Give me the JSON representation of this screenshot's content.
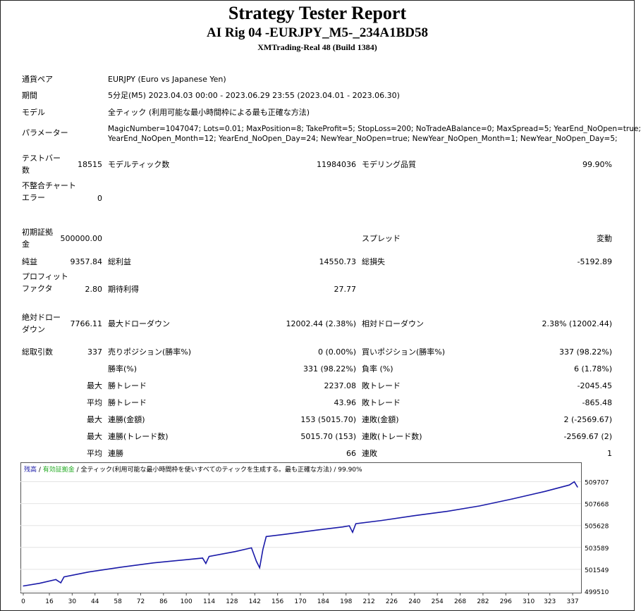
{
  "header": {
    "title": "Strategy Tester Report",
    "subtitle": "AI Rig 04 -EURJPY_M5-_234A1BD58",
    "server": "XMTrading-Real 48 (Build 1384)"
  },
  "info": {
    "pair_label": "通貨ペア",
    "pair_value": "EURJPY (Euro vs Japanese Yen)",
    "period_label": "期間",
    "period_value": "5分足(M5) 2023.04.03 00:00 - 2023.06.29 23:55 (2023.04.01 - 2023.06.30)",
    "model_label": "モデル",
    "model_value": "全ティック (利用可能な最小時間枠による最も正確な方法)",
    "params_label": "パラメーター",
    "params_line1": "MagicNumber=1047047; Lots=0.01; MaxPosition=8; TakeProfit=5; StopLoss=200; NoTradeABalance=0; MaxSpread=5; YearEnd_NoOpen=true;",
    "params_line2": "YearEnd_NoOpen_Month=12; YearEnd_NoOpen_Day=24; NewYear_NoOpen=true; NewYear_NoOpen_Month=1; NewYear_NoOpen_Day=5;"
  },
  "stats": {
    "bars_label": "テストバー数",
    "bars_value": "18515",
    "ticks_label": "モデルティック数",
    "ticks_value": "11984036",
    "quality_label": "モデリング品質",
    "quality_value": "99.90%",
    "mismatch_label": "不整合チャートエラー",
    "mismatch_value": "0",
    "deposit_label": "初期証拠金",
    "deposit_value": "500000.00",
    "spread_label": "スプレッド",
    "spread_value": "変動",
    "net_label": "純益",
    "net_value": "9357.84",
    "gross_profit_label": "総利益",
    "gross_profit_value": "14550.73",
    "gross_loss_label": "総損失",
    "gross_loss_value": "-5192.89",
    "pf_label": "プロフィットファクタ",
    "pf_value": "2.80",
    "expected_label": "期待利得",
    "expected_value": "27.77",
    "abs_dd_label": "絶対ドローダウン",
    "abs_dd_value": "7766.11",
    "max_dd_label": "最大ドローダウン",
    "max_dd_value": "12002.44 (2.38%)",
    "rel_dd_label": "相対ドローダウン",
    "rel_dd_value": "2.38% (12002.44)",
    "trades_label": "総取引数",
    "trades_value": "337",
    "short_label": "売りポジション(勝率%)",
    "short_value": "0 (0.00%)",
    "long_label": "買いポジション(勝率%)",
    "long_value": "337 (98.22%)",
    "win_label": "勝率(%)",
    "win_value": "331 (98.22%)",
    "loss_label": "負率 (%)",
    "loss_value": "6 (1.78%)",
    "max_word": "最大",
    "avg_word": "平均",
    "largest_win_label": "勝トレード",
    "largest_win_value": "2237.08",
    "largest_loss_label": "敗トレード",
    "largest_loss_value": "-2045.45",
    "avg_win_label": "勝トレード",
    "avg_win_value": "43.96",
    "avg_loss_label": "敗トレード",
    "avg_loss_value": "-865.48",
    "consec_win_amt_label": "連勝(金額)",
    "consec_win_amt_value": "153 (5015.70)",
    "consec_loss_amt_label": "連敗(金額)",
    "consec_loss_amt_value": "2 (-2569.67)",
    "consec_win_cnt_label": "連勝(トレード数)",
    "consec_win_cnt_value": "5015.70 (153)",
    "consec_loss_cnt_label": "連敗(トレード数)",
    "consec_loss_cnt_value": "-2569.67 (2)",
    "avg_consec_win_label": "連勝",
    "avg_consec_win_value": "66",
    "avg_consec_loss_label": "連敗",
    "avg_consec_loss_value": "1"
  },
  "chart_legend": {
    "balance": "残高",
    "sep1": " / ",
    "equity": "有効証拠金",
    "rest": " / 全ティック(利用可能な最小時間枠を使いすべてのティックを生成する。最も正確な方法) / 99.90%"
  },
  "chart_data": {
    "type": "line",
    "xticks": [
      "0",
      "16",
      "30",
      "44",
      "58",
      "72",
      "86",
      "100",
      "114",
      "128",
      "142",
      "156",
      "170",
      "184",
      "198",
      "212",
      "226",
      "240",
      "254",
      "268",
      "282",
      "296",
      "310",
      "323",
      "337"
    ],
    "yticks": [
      "509707",
      "507668",
      "505628",
      "503589",
      "501549",
      "499510"
    ],
    "ylim": [
      499510,
      510200
    ],
    "xlim": [
      0,
      340
    ],
    "series": [
      {
        "color": "#1a1aa8",
        "points": [
          [
            0,
            500000
          ],
          [
            10,
            500250
          ],
          [
            20,
            500600
          ],
          [
            23,
            500300
          ],
          [
            25,
            500850
          ],
          [
            40,
            501300
          ],
          [
            60,
            501750
          ],
          [
            80,
            502150
          ],
          [
            100,
            502450
          ],
          [
            110,
            502600
          ],
          [
            112,
            502100
          ],
          [
            114,
            502750
          ],
          [
            130,
            503200
          ],
          [
            140,
            503550
          ],
          [
            143,
            502300
          ],
          [
            145,
            501700
          ],
          [
            147,
            503400
          ],
          [
            149,
            504600
          ],
          [
            160,
            504800
          ],
          [
            180,
            505200
          ],
          [
            196,
            505500
          ],
          [
            200,
            505600
          ],
          [
            202,
            505000
          ],
          [
            204,
            505800
          ],
          [
            220,
            506100
          ],
          [
            240,
            506550
          ],
          [
            260,
            506950
          ],
          [
            280,
            507450
          ],
          [
            300,
            508100
          ],
          [
            320,
            508800
          ],
          [
            335,
            509400
          ],
          [
            338,
            509700
          ],
          [
            340,
            509200
          ]
        ]
      }
    ]
  },
  "colors": {
    "balance": "#1a1aa8",
    "equity": "#22aa22"
  }
}
